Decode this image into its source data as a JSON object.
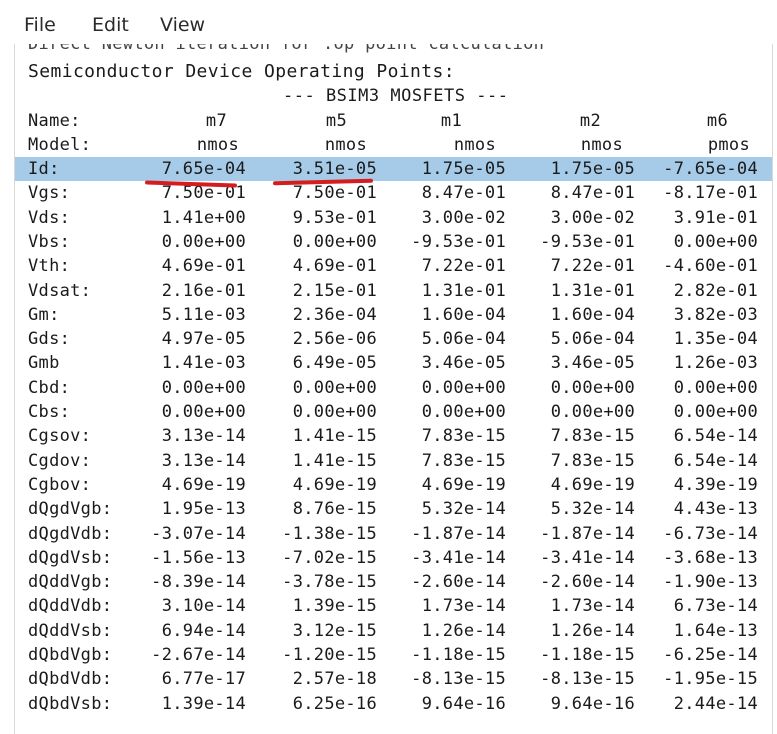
{
  "menu": {
    "file": "File",
    "edit": "Edit",
    "view": "View"
  },
  "clipped_text": "Direct Newton iteration for .op point calculation",
  "heading": "Semiconductor Device Operating Points:",
  "subheading": "--- BSIM3 MOSFETS ---",
  "header_row": {
    "label": "Name:",
    "values": [
      "m7",
      "m5",
      "m1",
      "m2",
      "m6"
    ]
  },
  "model_row": {
    "label": "Model:",
    "values": [
      "nmos",
      "nmos",
      "nmos",
      "nmos",
      "pmos"
    ]
  },
  "rows": [
    {
      "label": "Id:",
      "values": [
        "7.65e-04",
        "3.51e-05",
        "1.75e-05",
        "1.75e-05",
        "-7.65e-04"
      ]
    },
    {
      "label": "Vgs:",
      "values": [
        "7.50e-01",
        "7.50e-01",
        "8.47e-01",
        "8.47e-01",
        "-8.17e-01"
      ]
    },
    {
      "label": "Vds:",
      "values": [
        "1.41e+00",
        "9.53e-01",
        "3.00e-02",
        "3.00e-02",
        "3.91e-01"
      ]
    },
    {
      "label": "Vbs:",
      "values": [
        "0.00e+00",
        "0.00e+00",
        "-9.53e-01",
        "-9.53e-01",
        "0.00e+00"
      ]
    },
    {
      "label": "Vth:",
      "values": [
        "4.69e-01",
        "4.69e-01",
        "7.22e-01",
        "7.22e-01",
        "-4.60e-01"
      ]
    },
    {
      "label": "Vdsat:",
      "values": [
        "2.16e-01",
        "2.15e-01",
        "1.31e-01",
        "1.31e-01",
        "2.82e-01"
      ]
    },
    {
      "label": "Gm:",
      "values": [
        "5.11e-03",
        "2.36e-04",
        "1.60e-04",
        "1.60e-04",
        "3.82e-03"
      ]
    },
    {
      "label": "Gds:",
      "values": [
        "4.97e-05",
        "2.56e-06",
        "5.06e-04",
        "5.06e-04",
        "1.35e-04"
      ]
    },
    {
      "label": "Gmb",
      "values": [
        "1.41e-03",
        "6.49e-05",
        "3.46e-05",
        "3.46e-05",
        "1.26e-03"
      ]
    },
    {
      "label": "Cbd:",
      "values": [
        "0.00e+00",
        "0.00e+00",
        "0.00e+00",
        "0.00e+00",
        "0.00e+00"
      ]
    },
    {
      "label": "Cbs:",
      "values": [
        "0.00e+00",
        "0.00e+00",
        "0.00e+00",
        "0.00e+00",
        "0.00e+00"
      ]
    },
    {
      "label": "Cgsov:",
      "values": [
        "3.13e-14",
        "1.41e-15",
        "7.83e-15",
        "7.83e-15",
        "6.54e-14"
      ]
    },
    {
      "label": "Cgdov:",
      "values": [
        "3.13e-14",
        "1.41e-15",
        "7.83e-15",
        "7.83e-15",
        "6.54e-14"
      ]
    },
    {
      "label": "Cgbov:",
      "values": [
        "4.69e-19",
        "4.69e-19",
        "4.69e-19",
        "4.69e-19",
        "4.39e-19"
      ]
    },
    {
      "label": "dQgdVgb:",
      "values": [
        "1.95e-13",
        "8.76e-15",
        "5.32e-14",
        "5.32e-14",
        "4.43e-13"
      ]
    },
    {
      "label": "dQgdVdb:",
      "values": [
        "-3.07e-14",
        "-1.38e-15",
        "-1.87e-14",
        "-1.87e-14",
        "-6.73e-14"
      ]
    },
    {
      "label": "dQgdVsb:",
      "values": [
        "-1.56e-13",
        "-7.02e-15",
        "-3.41e-14",
        "-3.41e-14",
        "-3.68e-13"
      ]
    },
    {
      "label": "dQddVgb:",
      "values": [
        "-8.39e-14",
        "-3.78e-15",
        "-2.60e-14",
        "-2.60e-14",
        "-1.90e-13"
      ]
    },
    {
      "label": "dQddVdb:",
      "values": [
        "3.10e-14",
        "1.39e-15",
        "1.73e-14",
        "1.73e-14",
        "6.73e-14"
      ]
    },
    {
      "label": "dQddVsb:",
      "values": [
        "6.94e-14",
        "3.12e-15",
        "1.26e-14",
        "1.26e-14",
        "1.64e-13"
      ]
    },
    {
      "label": "dQbdVgb:",
      "values": [
        "-2.67e-14",
        "-1.20e-15",
        "-1.18e-15",
        "-1.18e-15",
        "-6.25e-14"
      ]
    },
    {
      "label": "dQbdVdb:",
      "values": [
        "6.77e-17",
        "2.57e-18",
        "-8.13e-15",
        "-8.13e-15",
        "-1.95e-15"
      ]
    },
    {
      "label": "dQbdVsb:",
      "values": [
        "1.39e-14",
        "6.25e-16",
        "9.64e-16",
        "9.64e-16",
        "2.44e-14"
      ]
    }
  ],
  "colors": {
    "highlight": "#a6cbe8",
    "annotation": "#d61d1d"
  }
}
